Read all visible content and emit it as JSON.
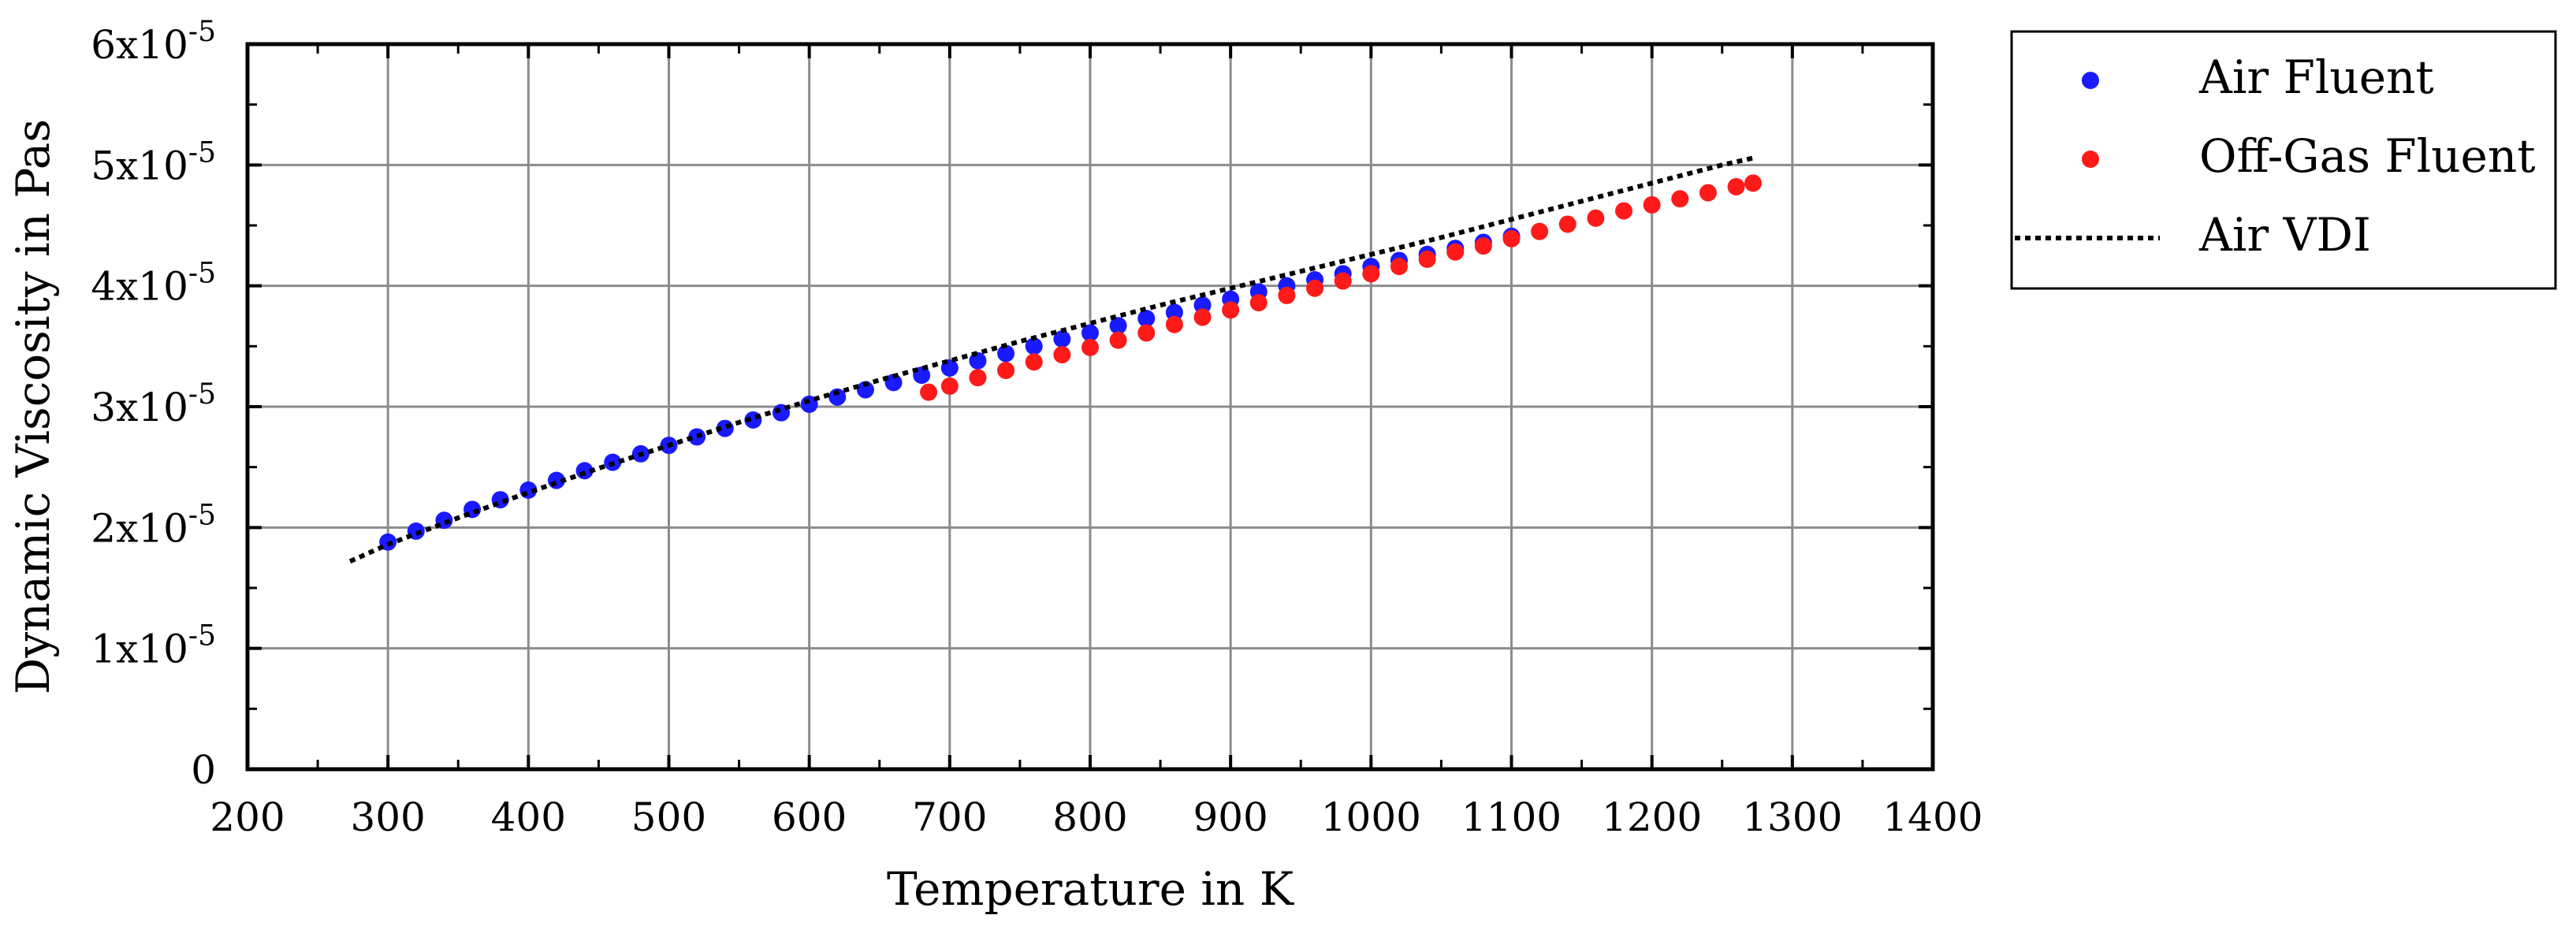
{
  "chart_data": {
    "type": "scatter",
    "title": "",
    "xlabel": "Temperature in K",
    "ylabel": "Dynamic Viscosity in Pas",
    "xlim": [
      200,
      1400
    ],
    "ylim": [
      0,
      6e-05
    ],
    "grid": true,
    "x_ticks": [
      200,
      300,
      400,
      500,
      600,
      700,
      800,
      900,
      1000,
      1100,
      1200,
      1300,
      1400
    ],
    "x_tick_labels": [
      "200",
      "300",
      "400",
      "500",
      "600",
      "700",
      "800",
      "900",
      "1000",
      "1100",
      "1200",
      "1300",
      "1400"
    ],
    "y_ticks": [
      0,
      1e-05,
      2e-05,
      3e-05,
      4e-05,
      5e-05,
      6e-05
    ],
    "y_tick_labels": [
      {
        "base": "0",
        "exp": ""
      },
      {
        "base": "1x10",
        "exp": "-5"
      },
      {
        "base": "2x10",
        "exp": "-5"
      },
      {
        "base": "3x10",
        "exp": "-5"
      },
      {
        "base": "4x10",
        "exp": "-5"
      },
      {
        "base": "5x10",
        "exp": "-5"
      },
      {
        "base": "6x10",
        "exp": "-5"
      }
    ],
    "legend_position": "outside-right-top",
    "series": [
      {
        "name": "Air Fluent",
        "style": "markers",
        "color": "#1a1aff",
        "x": [
          300,
          320,
          340,
          360,
          380,
          400,
          420,
          440,
          460,
          480,
          500,
          520,
          540,
          560,
          580,
          600,
          620,
          640,
          660,
          680,
          700,
          720,
          740,
          760,
          780,
          800,
          820,
          840,
          860,
          880,
          900,
          920,
          940,
          960,
          980,
          1000,
          1020,
          1040,
          1060,
          1080,
          1100
        ],
        "y": [
          1.88e-05,
          1.97e-05,
          2.06e-05,
          2.15e-05,
          2.23e-05,
          2.31e-05,
          2.39e-05,
          2.47e-05,
          2.54e-05,
          2.61e-05,
          2.68e-05,
          2.75e-05,
          2.82e-05,
          2.89e-05,
          2.95e-05,
          3.02e-05,
          3.08e-05,
          3.14e-05,
          3.2e-05,
          3.26e-05,
          3.32e-05,
          3.38e-05,
          3.44e-05,
          3.5e-05,
          3.56e-05,
          3.61e-05,
          3.67e-05,
          3.73e-05,
          3.78e-05,
          3.84e-05,
          3.89e-05,
          3.95e-05,
          4e-05,
          4.05e-05,
          4.1e-05,
          4.16e-05,
          4.21e-05,
          4.26e-05,
          4.31e-05,
          4.36e-05,
          4.41e-05
        ]
      },
      {
        "name": "Off-Gas Fluent",
        "style": "markers",
        "color": "#ff1a1a",
        "x": [
          685,
          700,
          720,
          740,
          760,
          780,
          800,
          820,
          840,
          860,
          880,
          900,
          920,
          940,
          960,
          980,
          1000,
          1020,
          1040,
          1060,
          1080,
          1100,
          1120,
          1140,
          1160,
          1180,
          1200,
          1220,
          1240,
          1260,
          1272
        ],
        "y": [
          3.12e-05,
          3.17e-05,
          3.24e-05,
          3.3e-05,
          3.37e-05,
          3.43e-05,
          3.49e-05,
          3.55e-05,
          3.61e-05,
          3.68e-05,
          3.74e-05,
          3.8e-05,
          3.86e-05,
          3.92e-05,
          3.98e-05,
          4.04e-05,
          4.1e-05,
          4.16e-05,
          4.22e-05,
          4.28e-05,
          4.33e-05,
          4.39e-05,
          4.45e-05,
          4.51e-05,
          4.56e-05,
          4.62e-05,
          4.67e-05,
          4.72e-05,
          4.77e-05,
          4.82e-05,
          4.85e-05
        ]
      },
      {
        "name": "Air VDI",
        "style": "dotted-line",
        "color": "#000000",
        "x": [
          273,
          300,
          350,
          400,
          450,
          500,
          550,
          600,
          650,
          700,
          750,
          800,
          850,
          900,
          950,
          1000,
          1050,
          1100,
          1150,
          1200,
          1250,
          1273
        ],
        "y": [
          1.72e-05,
          1.86e-05,
          2.08e-05,
          2.29e-05,
          2.49e-05,
          2.68e-05,
          2.87e-05,
          3.05e-05,
          3.22e-05,
          3.38e-05,
          3.54e-05,
          3.69e-05,
          3.84e-05,
          3.98e-05,
          4.12e-05,
          4.26e-05,
          4.4e-05,
          4.55e-05,
          4.7e-05,
          4.85e-05,
          5e-05,
          5.06e-05
        ]
      }
    ]
  }
}
